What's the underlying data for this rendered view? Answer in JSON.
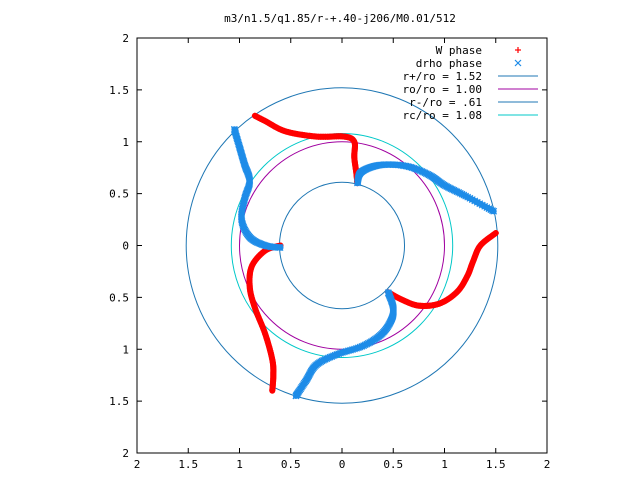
{
  "chart_data": {
    "type": "scatter",
    "title": "m3/n1.5/q1.85/r-+.40-j206/M0.01/512",
    "xlabel": "",
    "ylabel": "",
    "xlim": [
      -2,
      2
    ],
    "ylim": [
      -2,
      2
    ],
    "x_tick_labels": [
      "2",
      "1.5",
      "1",
      "0.5",
      "0",
      "0.5",
      "1",
      "1.5",
      "2"
    ],
    "y_tick_labels": [
      "2",
      "1.5",
      "1",
      "0.5",
      "0",
      "0.5",
      "1",
      "1.5",
      "2"
    ],
    "x_tick_values": [
      -2,
      -1.5,
      -1,
      -0.5,
      0,
      0.5,
      1,
      1.5,
      2
    ],
    "y_tick_values": [
      -2,
      -1.5,
      -1,
      -0.5,
      0,
      0.5,
      1,
      1.5,
      2
    ],
    "grid": false,
    "legend_position": "top-right",
    "series": [
      {
        "name": "W phase",
        "kind": "points",
        "marker": "plus",
        "color": "#ff0000",
        "arms": [
          {
            "points": [
              [
                1.5,
                0.12
              ],
              [
                1.35,
                0.0
              ],
              [
                1.28,
                -0.15
              ],
              [
                1.22,
                -0.3
              ],
              [
                1.12,
                -0.45
              ],
              [
                0.95,
                -0.56
              ],
              [
                0.75,
                -0.58
              ],
              [
                0.58,
                -0.52
              ],
              [
                0.45,
                -0.45
              ]
            ]
          },
          {
            "points": [
              [
                -0.6,
                0.0
              ],
              [
                -0.75,
                -0.05
              ],
              [
                -0.88,
                -0.2
              ],
              [
                -0.9,
                -0.4
              ],
              [
                -0.85,
                -0.6
              ],
              [
                -0.75,
                -0.85
              ],
              [
                -0.68,
                -1.1
              ],
              [
                -0.67,
                -1.25
              ],
              [
                -0.68,
                -1.4
              ]
            ]
          },
          {
            "points": [
              [
                -0.85,
                1.25
              ],
              [
                -0.75,
                1.2
              ],
              [
                -0.55,
                1.1
              ],
              [
                -0.25,
                1.05
              ],
              [
                0.02,
                1.05
              ],
              [
                0.12,
                1.0
              ],
              [
                0.12,
                0.85
              ],
              [
                0.14,
                0.7
              ],
              [
                0.15,
                0.6
              ]
            ]
          }
        ]
      },
      {
        "name": "drho phase",
        "kind": "points",
        "marker": "cross",
        "color": "#1e8ce8",
        "arms": [
          {
            "points": [
              [
                1.48,
                0.33
              ],
              [
                1.2,
                0.48
              ],
              [
                1.0,
                0.58
              ],
              [
                0.85,
                0.68
              ],
              [
                0.65,
                0.76
              ],
              [
                0.45,
                0.78
              ],
              [
                0.3,
                0.76
              ],
              [
                0.18,
                0.7
              ],
              [
                0.15,
                0.6
              ]
            ]
          },
          {
            "points": [
              [
                -1.05,
                1.12
              ],
              [
                -1.0,
                0.95
              ],
              [
                -0.95,
                0.78
              ],
              [
                -0.9,
                0.62
              ],
              [
                -0.95,
                0.45
              ],
              [
                -0.98,
                0.25
              ],
              [
                -0.9,
                0.08
              ],
              [
                -0.75,
                0.0
              ],
              [
                -0.6,
                -0.02
              ]
            ]
          },
          {
            "points": [
              [
                -0.45,
                -1.45
              ],
              [
                -0.35,
                -1.3
              ],
              [
                -0.25,
                -1.15
              ],
              [
                -0.05,
                -1.05
              ],
              [
                0.2,
                -0.97
              ],
              [
                0.38,
                -0.86
              ],
              [
                0.48,
                -0.72
              ],
              [
                0.5,
                -0.6
              ],
              [
                0.45,
                -0.45
              ]
            ]
          }
        ]
      },
      {
        "name": "r+/ro = 1.52",
        "kind": "circle",
        "radius": 1.52,
        "color": "#1f77b4"
      },
      {
        "name": "ro/ro = 1.00",
        "kind": "circle",
        "radius": 1.0,
        "color": "#a000a0"
      },
      {
        "name": "r-/ro = .61",
        "kind": "circle",
        "radius": 0.61,
        "color": "#1f77b4"
      },
      {
        "name": "rc/ro = 1.08",
        "kind": "circle",
        "radius": 1.08,
        "color": "#00c8c8"
      }
    ]
  }
}
